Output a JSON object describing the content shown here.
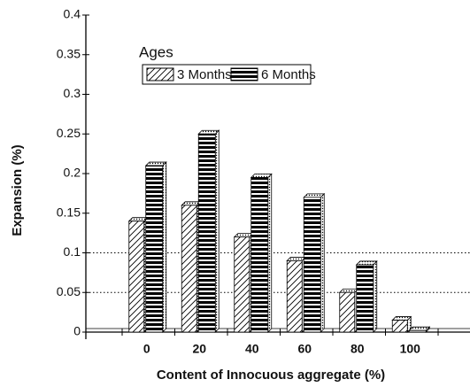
{
  "chart_data": {
    "type": "bar",
    "xlabel": "Content of Innocuous aggregate (%)",
    "ylabel": "Expansion (%)",
    "legend_title": "Ages",
    "categories": [
      "0",
      "20",
      "40",
      "60",
      "80",
      "100"
    ],
    "series": [
      {
        "name": "3 Months",
        "color": "#000000",
        "pattern": "diagonal",
        "values": [
          0.14,
          0.16,
          0.12,
          0.09,
          0.05,
          0.015
        ]
      },
      {
        "name": "6 Months",
        "color": "#000000",
        "pattern": "horizontal",
        "values": [
          0.21,
          0.25,
          0.195,
          0.17,
          0.085,
          0.002
        ]
      }
    ],
    "ylim": [
      0,
      0.4
    ],
    "yticks": [
      0,
      0.05,
      0.1,
      0.15,
      0.2,
      0.25,
      0.3,
      0.35,
      0.4
    ],
    "reference_lines": [
      0.05,
      0.1
    ],
    "legend": "upper-left"
  }
}
